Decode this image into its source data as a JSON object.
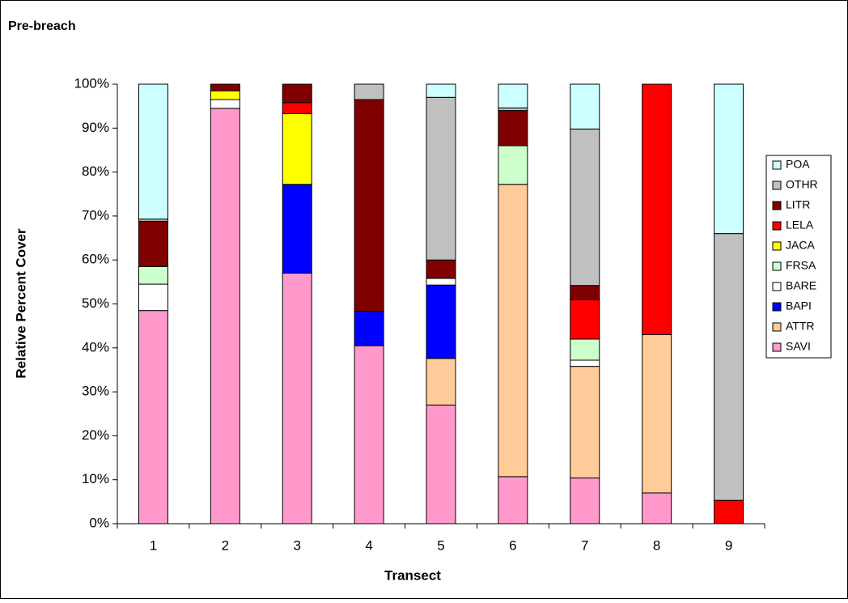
{
  "chart_data": {
    "type": "stacked_bar",
    "title": "Pre-breach",
    "x_label": "Transect",
    "y_label": "Relative Percent Cover",
    "categories": [
      "1",
      "2",
      "3",
      "4",
      "5",
      "6",
      "7",
      "8",
      "9"
    ],
    "series": [
      {
        "name": "SAVI",
        "color": "#ff99cc",
        "values": [
          48.5,
          94.5,
          57,
          40.5,
          27,
          10.7,
          10.4,
          7,
          0
        ]
      },
      {
        "name": "ATTR",
        "color": "#ffcc99",
        "values": [
          0,
          0,
          0,
          0,
          10.6,
          66.5,
          25.4,
          36,
          0
        ]
      },
      {
        "name": "BAPI",
        "color": "#0000ff",
        "values": [
          0,
          0,
          20.2,
          7.8,
          16.7,
          0,
          0,
          0,
          0
        ]
      },
      {
        "name": "BARE",
        "color": "#ffffff",
        "values": [
          6,
          2,
          0,
          0,
          1.5,
          0,
          1.4,
          0,
          0
        ]
      },
      {
        "name": "FRSA",
        "color": "#ccffcc",
        "values": [
          4,
          0,
          0,
          0,
          0,
          8.8,
          4.8,
          0,
          0
        ]
      },
      {
        "name": "JACA",
        "color": "#ffff00",
        "values": [
          0,
          2,
          16.1,
          0,
          0,
          0,
          0,
          0,
          0
        ]
      },
      {
        "name": "LELA",
        "color": "#ff0000",
        "values": [
          0,
          0,
          2.5,
          0,
          0,
          0,
          9,
          57,
          5.3
        ]
      },
      {
        "name": "LITR",
        "color": "#800000",
        "values": [
          10.3,
          1.5,
          4.2,
          48.2,
          4.2,
          8,
          3.2,
          0,
          0
        ]
      },
      {
        "name": "OTHR",
        "color": "#c0c0c0",
        "values": [
          0.5,
          0,
          0,
          3.5,
          37,
          0.6,
          35.6,
          0,
          60.7
        ]
      },
      {
        "name": "POA",
        "color": "#ccffff",
        "values": [
          30.7,
          0,
          0,
          0,
          3,
          5.4,
          10.2,
          0,
          34
        ]
      }
    ],
    "ylim": [
      0,
      100
    ],
    "yticks": [
      {
        "value": 0,
        "label": "0%"
      },
      {
        "value": 10,
        "label": "10%"
      },
      {
        "value": 20,
        "label": "20%"
      },
      {
        "value": 30,
        "label": "30%"
      },
      {
        "value": 40,
        "label": "40%"
      },
      {
        "value": 50,
        "label": "50%"
      },
      {
        "value": 60,
        "label": "60%"
      },
      {
        "value": 70,
        "label": "70%"
      },
      {
        "value": 80,
        "label": "80%"
      },
      {
        "value": 90,
        "label": "90%"
      },
      {
        "value": 100,
        "label": "100%"
      }
    ],
    "legend": "right"
  }
}
